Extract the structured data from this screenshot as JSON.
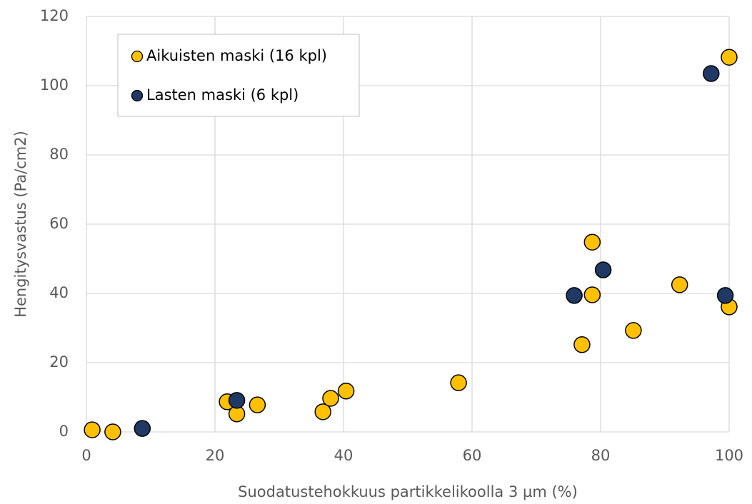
{
  "chart_data": {
    "type": "scatter",
    "xlabel": "Suodatustehokkuus partikkelikoolla 3 µm (%)",
    "ylabel": "Hengitysvastus (Pa/cm2)",
    "xlim": [
      0,
      100
    ],
    "xticks": [
      0,
      20,
      40,
      60,
      80,
      100
    ],
    "ylim": [
      0,
      120
    ],
    "yticks": [
      0,
      20,
      40,
      60,
      80,
      100,
      120
    ],
    "grid": true,
    "legend": "upper left",
    "series": [
      {
        "name": "Aikuisten maski (16 kpl)",
        "color": "#ffc000",
        "x": [
          0.9,
          4.1,
          21.9,
          23.4,
          26.6,
          36.8,
          38,
          40.4,
          57.9,
          77.1,
          78.7,
          78.7,
          85.1,
          92.3,
          100,
          100
        ],
        "values": [
          0.6,
          0,
          8.7,
          5.2,
          7.8,
          5.8,
          9.7,
          11.8,
          14.2,
          25.2,
          39.6,
          54.8,
          29.3,
          42.5,
          36.1,
          108.2
        ]
      },
      {
        "name": "Lasten maski (6 kpl)",
        "color": "#203864",
        "x": [
          8.7,
          23.4,
          75.9,
          80.4,
          97.2,
          99.4
        ],
        "values": [
          1,
          9.1,
          39.4,
          46.8,
          103.5,
          39.4
        ]
      }
    ]
  }
}
